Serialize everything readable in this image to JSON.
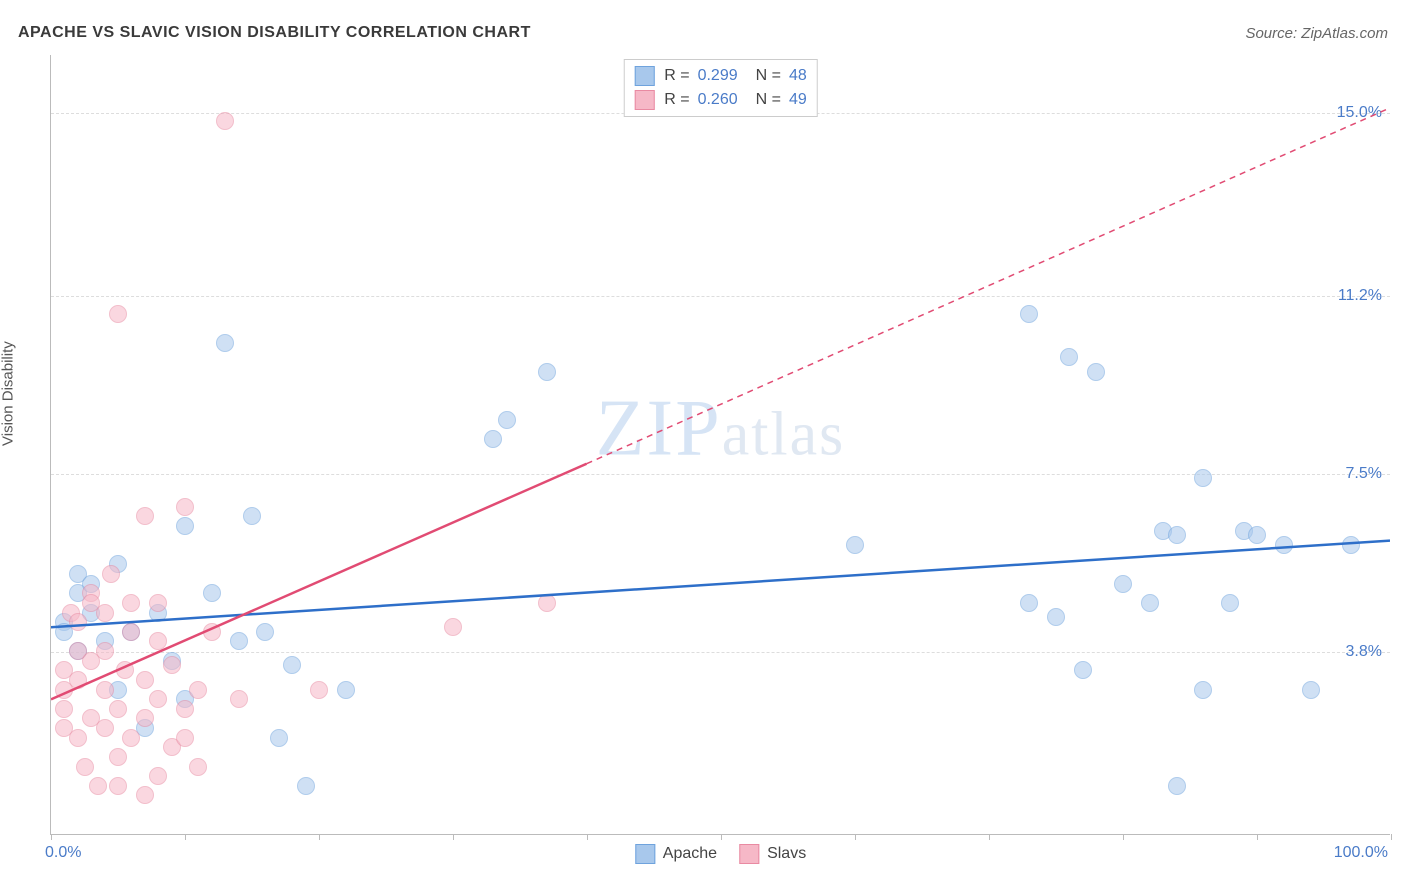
{
  "title": "APACHE VS SLAVIC VISION DISABILITY CORRELATION CHART",
  "source": "Source: ZipAtlas.com",
  "watermark_main": "ZIP",
  "watermark_sub": "atlas",
  "ylabel": "Vision Disability",
  "chart": {
    "type": "scatter",
    "xlim": [
      0,
      100
    ],
    "ylim": [
      0,
      16.2
    ],
    "x_ticks": [
      0,
      10,
      20,
      30,
      40,
      50,
      60,
      70,
      80,
      90,
      100
    ],
    "x_tick_labels": {
      "0": "0.0%",
      "100": "100.0%"
    },
    "y_gridlines": [
      3.8,
      7.5,
      11.2,
      15.0
    ],
    "y_tick_labels": [
      "3.8%",
      "7.5%",
      "11.2%",
      "15.0%"
    ],
    "grid_color": "#dddddd",
    "axis_color": "#bbbbbb",
    "label_color": "#4a7bc8",
    "background_color": "#ffffff",
    "marker_radius": 9,
    "marker_opacity": 0.55,
    "series": [
      {
        "name": "Apache",
        "fill": "#a8c8ec",
        "stroke": "#6fa3dd",
        "line_color": "#2e6fc9",
        "line_width": 2.5,
        "line_dash": "none",
        "trend": {
          "x1": 0,
          "y1": 4.3,
          "x2": 100,
          "y2": 6.1
        },
        "points": [
          [
            1,
            4.4
          ],
          [
            1,
            4.2
          ],
          [
            2,
            3.8
          ],
          [
            2,
            5.0
          ],
          [
            2,
            5.4
          ],
          [
            3,
            4.6
          ],
          [
            3,
            5.2
          ],
          [
            4,
            4.0
          ],
          [
            5,
            3.0
          ],
          [
            5,
            5.6
          ],
          [
            6,
            4.2
          ],
          [
            7,
            2.2
          ],
          [
            8,
            4.6
          ],
          [
            9,
            3.6
          ],
          [
            10,
            6.4
          ],
          [
            10,
            2.8
          ],
          [
            12,
            5.0
          ],
          [
            13,
            10.2
          ],
          [
            14,
            4.0
          ],
          [
            15,
            6.6
          ],
          [
            16,
            4.2
          ],
          [
            17,
            2.0
          ],
          [
            18,
            3.5
          ],
          [
            19,
            1.0
          ],
          [
            22,
            3.0
          ],
          [
            33,
            8.2
          ],
          [
            34,
            8.6
          ],
          [
            37,
            9.6
          ],
          [
            60,
            6.0
          ],
          [
            73,
            4.8
          ],
          [
            73,
            10.8
          ],
          [
            75,
            4.5
          ],
          [
            76,
            9.9
          ],
          [
            77,
            3.4
          ],
          [
            78,
            9.6
          ],
          [
            80,
            5.2
          ],
          [
            82,
            4.8
          ],
          [
            83,
            6.3
          ],
          [
            84,
            6.2
          ],
          [
            84,
            1.0
          ],
          [
            86,
            7.4
          ],
          [
            86,
            3.0
          ],
          [
            88,
            4.8
          ],
          [
            89,
            6.3
          ],
          [
            90,
            6.2
          ],
          [
            92,
            6.0
          ],
          [
            94,
            3.0
          ],
          [
            97,
            6.0
          ]
        ]
      },
      {
        "name": "Slavs",
        "fill": "#f6b8c7",
        "stroke": "#e98aa2",
        "line_color": "#e14b73",
        "line_width": 2.5,
        "line_dash": "6 5",
        "trend": {
          "x1": 0,
          "y1": 2.8,
          "x2": 40,
          "y2": 7.7
        },
        "trend_dash": {
          "x1": 40,
          "y1": 7.7,
          "x2": 100,
          "y2": 15.1
        },
        "points": [
          [
            1,
            2.6
          ],
          [
            1,
            3.0
          ],
          [
            1,
            2.2
          ],
          [
            1,
            3.4
          ],
          [
            1.5,
            4.6
          ],
          [
            2,
            2.0
          ],
          [
            2,
            3.2
          ],
          [
            2,
            3.8
          ],
          [
            2,
            4.4
          ],
          [
            2.5,
            1.4
          ],
          [
            3,
            2.4
          ],
          [
            3,
            3.6
          ],
          [
            3,
            5.0
          ],
          [
            3,
            4.8
          ],
          [
            3.5,
            1.0
          ],
          [
            4,
            2.2
          ],
          [
            4,
            3.0
          ],
          [
            4,
            3.8
          ],
          [
            4,
            4.6
          ],
          [
            4.5,
            5.4
          ],
          [
            5,
            1.6
          ],
          [
            5,
            1.0
          ],
          [
            5,
            2.6
          ],
          [
            5,
            10.8
          ],
          [
            5.5,
            3.4
          ],
          [
            6,
            2.0
          ],
          [
            6,
            4.2
          ],
          [
            6,
            4.8
          ],
          [
            7,
            0.8
          ],
          [
            7,
            2.4
          ],
          [
            7,
            3.2
          ],
          [
            7,
            6.6
          ],
          [
            8,
            1.2
          ],
          [
            8,
            2.8
          ],
          [
            8,
            4.0
          ],
          [
            8,
            4.8
          ],
          [
            9,
            1.8
          ],
          [
            9,
            3.5
          ],
          [
            10,
            2.0
          ],
          [
            10,
            2.6
          ],
          [
            10,
            6.8
          ],
          [
            11,
            1.4
          ],
          [
            11,
            3.0
          ],
          [
            12,
            4.2
          ],
          [
            13,
            14.8
          ],
          [
            14,
            2.8
          ],
          [
            20,
            3.0
          ],
          [
            30,
            4.3
          ],
          [
            37,
            4.8
          ]
        ]
      }
    ],
    "top_legend": [
      {
        "series": 0,
        "r": "0.299",
        "n": "48"
      },
      {
        "series": 1,
        "r": "0.260",
        "n": "49"
      }
    ],
    "bottom_legend": [
      "Apache",
      "Slavs"
    ]
  }
}
